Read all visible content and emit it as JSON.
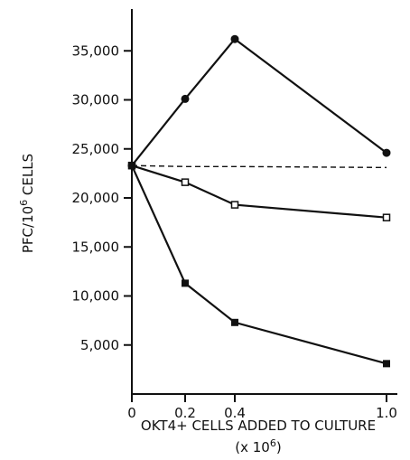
{
  "chart_data": {
    "type": "line",
    "title": "",
    "xlabel": "OKT4+ CELLS ADDED TO CULTURE",
    "xlabel_line2": "(x 10",
    "xlabel_line2_sup": "6",
    "xlabel_line2_end": ")",
    "ylabel": "PFC/10",
    "ylabel_sup": "6",
    "ylabel_end": " CELLS",
    "categories": [
      "0",
      "0.2",
      "0.4",
      "1.0"
    ],
    "ylim": [
      0,
      38000
    ],
    "yticks": [
      5000,
      10000,
      15000,
      20000,
      25000,
      30000,
      35000
    ],
    "ytick_labels": [
      "5,000",
      "10,000",
      "15,000",
      "20,000",
      "25,000",
      "30,000",
      "35,000"
    ],
    "grid": false,
    "series": [
      {
        "marker": "filled-circle",
        "style": "solid",
        "values": [
          23300,
          30100,
          36200,
          24600
        ]
      },
      {
        "marker": "open-square",
        "style": "solid",
        "values": [
          23300,
          21600,
          19300,
          18000
        ]
      },
      {
        "marker": "filled-square",
        "style": "solid",
        "values": [
          23300,
          11300,
          7300,
          3100
        ]
      },
      {
        "marker": "none",
        "style": "dashed",
        "values": [
          23300,
          23200,
          23200,
          23100
        ]
      }
    ],
    "colors": {
      "ink": "#111111"
    }
  }
}
